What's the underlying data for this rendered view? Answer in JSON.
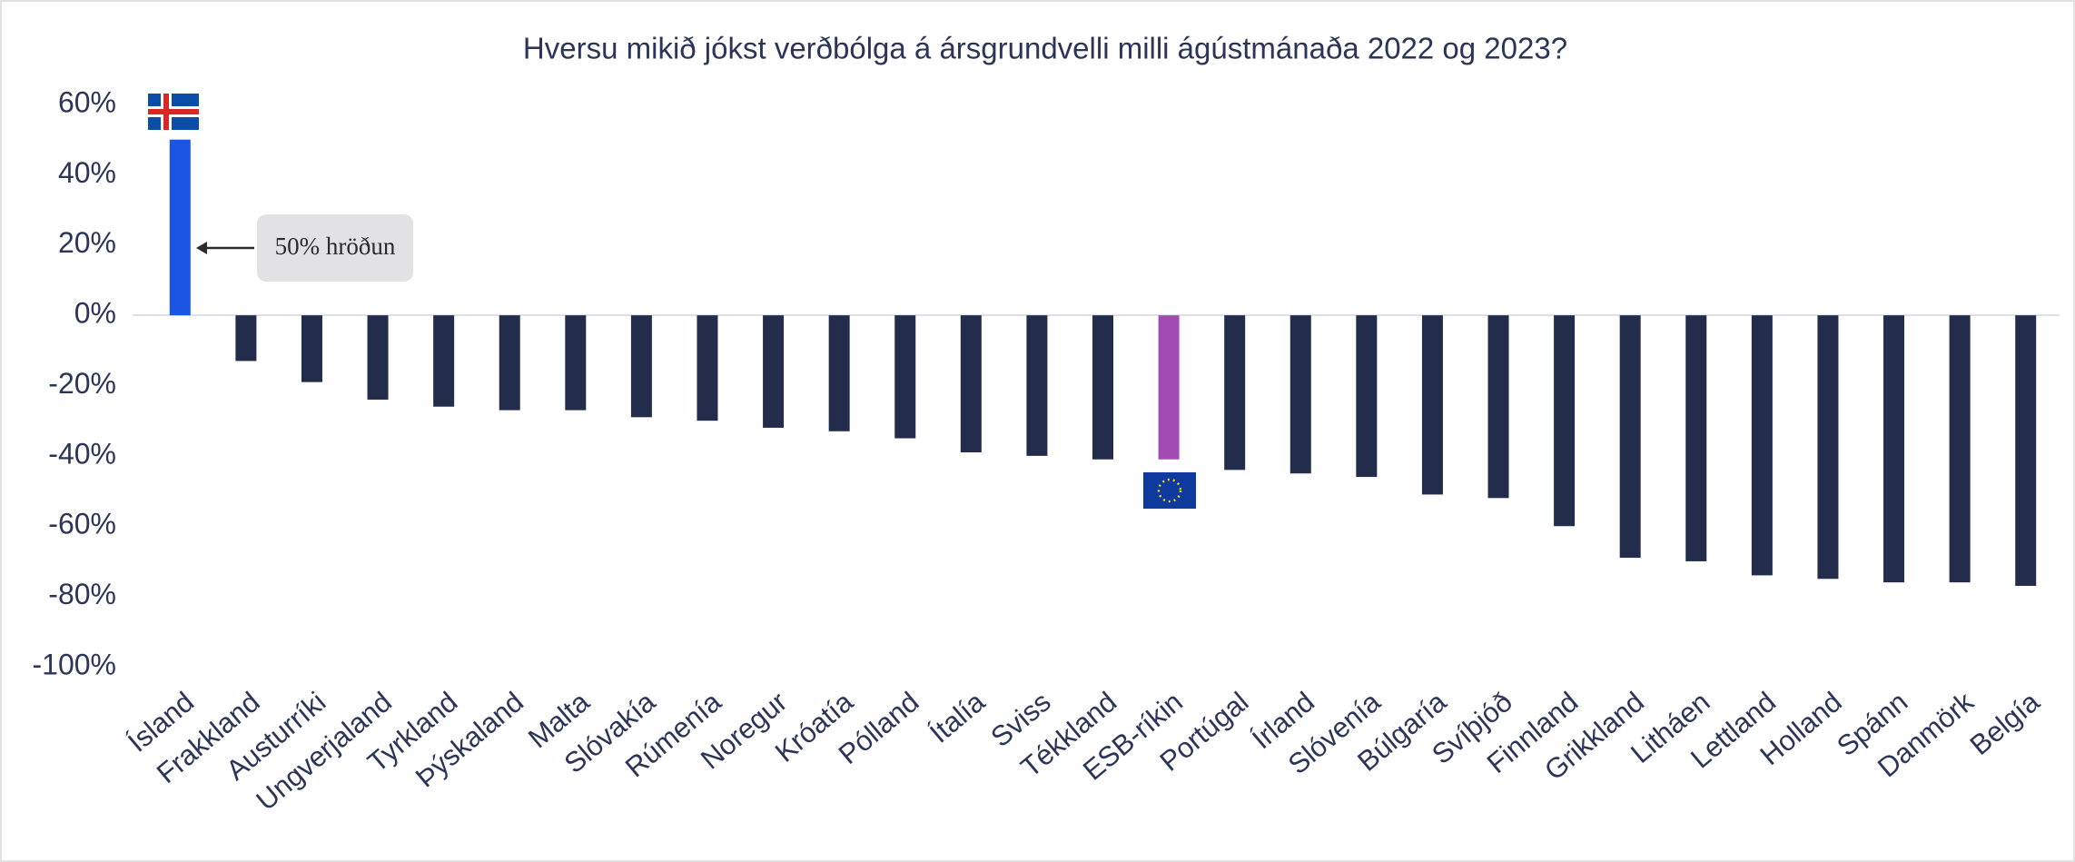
{
  "chart_data": {
    "type": "bar",
    "title": "Hversu mikið jókst verðbólga á ársgrundvelli milli ágústmánaða 2022 og 2023?",
    "categories": [
      "Ísland",
      "Frakkland",
      "Austurríki",
      "Ungverjaland",
      "Tyrkland",
      "Þýskaland",
      "Malta",
      "Slóvakía",
      "Rúmenía",
      "Noregur",
      "Króatía",
      "Pólland",
      "Ítalía",
      "Sviss",
      "Tékkland",
      "ESB-ríkin",
      "Portúgal",
      "Írland",
      "Slóvenía",
      "Búlgaría",
      "Svíþjóð",
      "Finnland",
      "Grikkland",
      "Litháen",
      "Lettland",
      "Holland",
      "Spánn",
      "Danmörk",
      "Belgía"
    ],
    "values": [
      50,
      -13,
      -19,
      -24,
      -26,
      -27,
      -27,
      -29,
      -30,
      -32,
      -33,
      -35,
      -39,
      -40,
      -41,
      -41,
      -44,
      -45,
      -46,
      -51,
      -52,
      -60,
      -69,
      -70,
      -74,
      -75,
      -76,
      -76,
      -77
    ],
    "colors": [
      "#1a55e3",
      "#232c4a",
      "#232c4a",
      "#232c4a",
      "#232c4a",
      "#232c4a",
      "#232c4a",
      "#232c4a",
      "#232c4a",
      "#232c4a",
      "#232c4a",
      "#232c4a",
      "#232c4a",
      "#232c4a",
      "#232c4a",
      "#a24bb5",
      "#232c4a",
      "#232c4a",
      "#232c4a",
      "#232c4a",
      "#232c4a",
      "#232c4a",
      "#232c4a",
      "#232c4a",
      "#232c4a",
      "#232c4a",
      "#232c4a",
      "#232c4a",
      "#232c4a"
    ],
    "ylim": [
      -100,
      60
    ],
    "yticks": [
      {
        "value": 60,
        "label": "60%"
      },
      {
        "value": 40,
        "label": "40%"
      },
      {
        "value": 20,
        "label": "20%"
      },
      {
        "value": 0,
        "label": "0%"
      },
      {
        "value": -20,
        "label": "-20%"
      },
      {
        "value": -40,
        "label": "-40%"
      },
      {
        "value": -60,
        "label": "-60%"
      },
      {
        "value": -80,
        "label": "-80%"
      },
      {
        "value": -100,
        "label": "-100%"
      }
    ],
    "annotation": "50% hröðun"
  }
}
